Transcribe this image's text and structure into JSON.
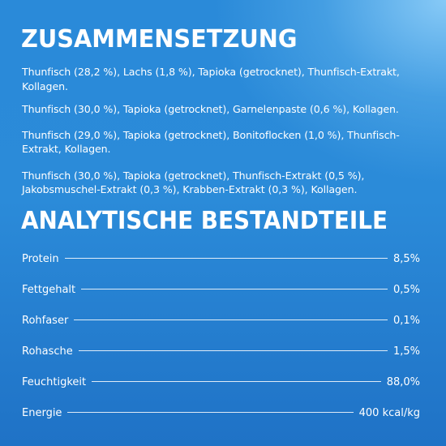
{
  "composition": {
    "title": "Zusammensetzung",
    "items": [
      "Thunfisch (28,2 %), Lachs (1,8 %), Tapioka (getrocknet), Thunfisch-Extrakt, Kollagen.",
      "Thunfisch (30,0 %), Tapioka (getrocknet), Garnelenpaste (0,6 %), Kollagen.",
      "Thunfisch (29,0 %), Tapioka (getrocknet), Bonitoflocken (1,0 %), Thunfisch-Extrakt, Kollagen.",
      "Thunfisch (30,0 %), Tapioka (getrocknet), Thunfisch-Extrakt (0,5 %), Jakobsmuschel-Extrakt (0,3 %), Krabben-Extrakt (0,3 %), Kollagen."
    ]
  },
  "analytic": {
    "title": "Analytische Bestandteile",
    "rows": [
      {
        "name": "Protein",
        "value": "8,5%"
      },
      {
        "name": "Fettgehalt",
        "value": "0,5%"
      },
      {
        "name": "Rohfaser",
        "value": "0,1%"
      },
      {
        "name": "Rohasche",
        "value": "1,5%"
      },
      {
        "name": "Feuchtigkeit",
        "value": "88,0%"
      },
      {
        "name": "Energie",
        "value": "400 kcal/kg"
      }
    ]
  },
  "colors": {
    "background_top": "#2a8ad9",
    "background_bottom": "#1f72c6",
    "highlight": "#8ccdf8",
    "text": "#ffffff"
  }
}
